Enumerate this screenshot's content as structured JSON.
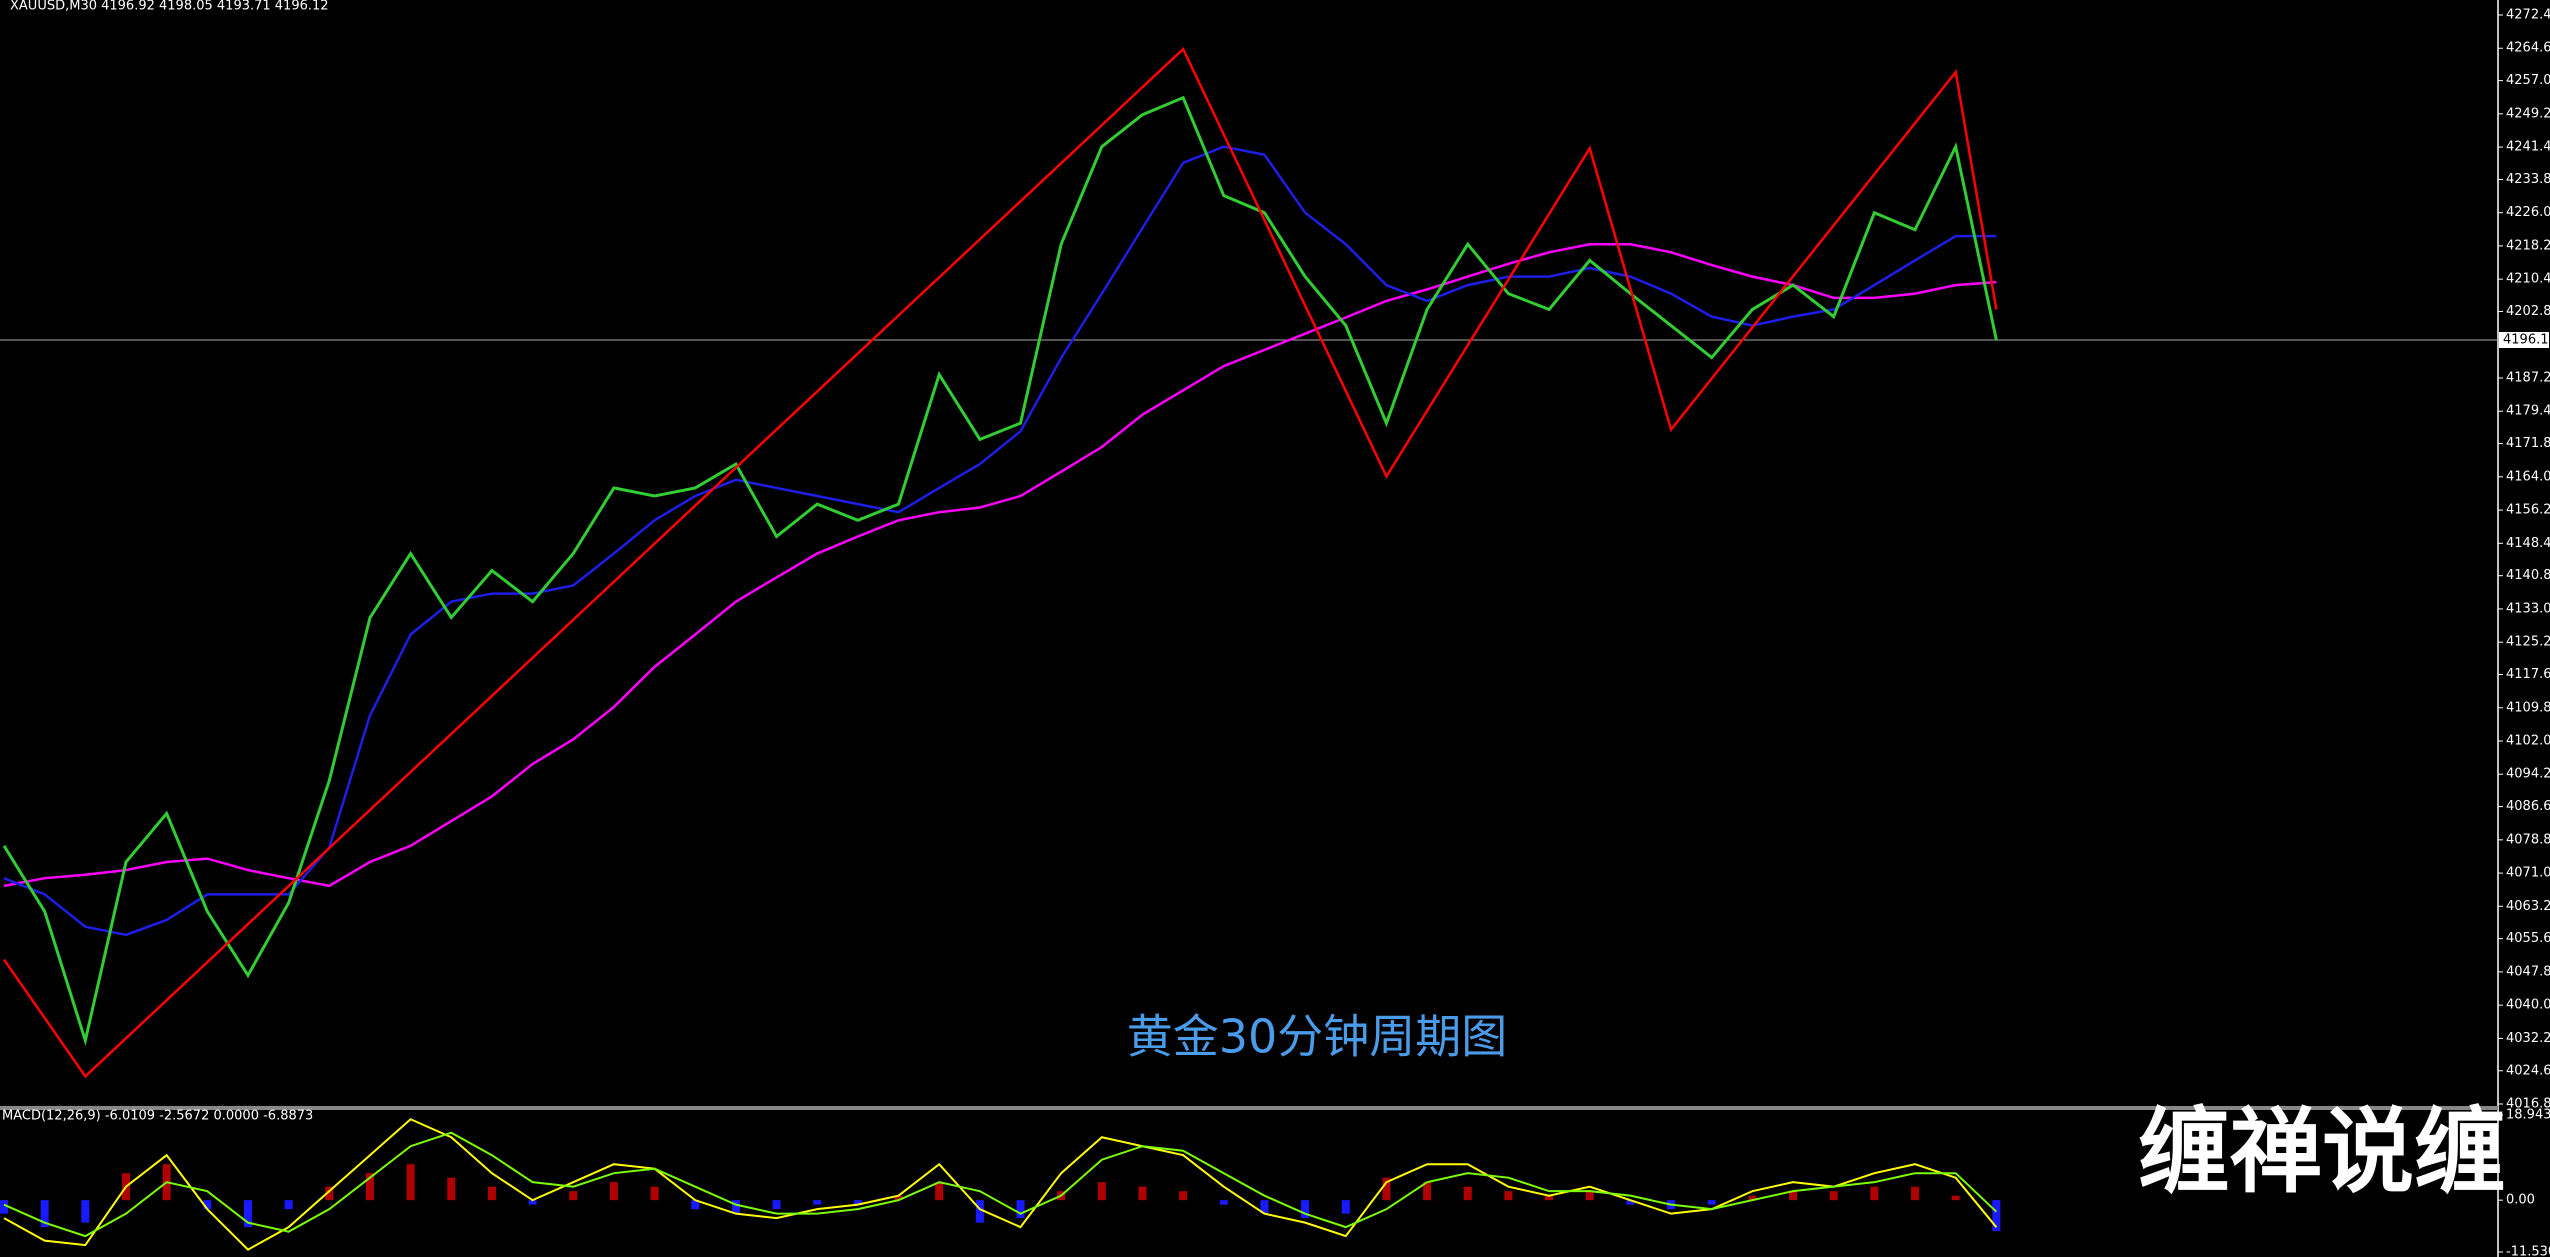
{
  "chart_data": [
    {
      "type": "line",
      "header": "XAUUSD,M30  4196.92 4198.05 4193.71 4196.12",
      "title": "黄金30分钟周期图",
      "x": [
        0,
        1,
        2,
        3,
        4,
        5,
        6,
        7,
        8,
        9,
        10,
        11,
        12,
        13,
        14,
        15,
        16,
        17,
        18,
        19,
        20,
        21,
        22,
        23,
        24,
        25,
        26,
        27,
        28,
        29,
        30,
        31,
        32,
        33,
        34,
        35,
        36,
        37,
        38,
        39,
        40,
        41,
        42,
        43,
        44,
        45,
        46,
        47,
        48,
        49
      ],
      "series": [
        {
          "color": "#32cd32",
          "values": [
            4077.4,
            4062,
            4031.7,
            4073.6,
            4085,
            4062,
            4047,
            4064,
            4092.7,
            4130.9,
            4146,
            4131,
            4142,
            4134.7,
            4146,
            4161.4,
            4159.5,
            4161.4,
            4167,
            4150,
            4157.6,
            4153.8,
            4157.6,
            4188,
            4172.8,
            4176.6,
            4218.6,
            4241.5,
            4249,
            4253,
            4230,
            4226,
            4211,
            4199.5,
            4176.6,
            4203.3,
            4218.6,
            4207,
            4203.3,
            4214.8,
            4207,
            4199.5,
            4192,
            4203.3,
            4209,
            4201.6,
            4226,
            4222,
            4241.5,
            4196.12
          ]
        },
        {
          "color": "#1e1ee6",
          "values": [
            4069.8,
            4066,
            4058.4,
            4056.5,
            4060,
            4066,
            4066,
            4066,
            4077,
            4108,
            4127,
            4134.7,
            4136.6,
            4136.6,
            4138.5,
            4146,
            4153.8,
            4159.5,
            4163.3,
            4161.4,
            4159.5,
            4157.6,
            4155.7,
            4161.4,
            4167,
            4174.7,
            4191.9,
            4207,
            4222.4,
            4237.7,
            4241.5,
            4239.6,
            4226,
            4218.6,
            4209,
            4205.3,
            4209,
            4211,
            4211,
            4213,
            4211,
            4207,
            4201.6,
            4199.5,
            4201.6,
            4203.3,
            4209,
            4214.8,
            4220.5,
            4220.5
          ]
        },
        {
          "color": "#ff00ff",
          "values": [
            4068,
            4069.8,
            4070.6,
            4071.7,
            4073.6,
            4074.4,
            4071.7,
            4069.8,
            4068,
            4073.6,
            4077.4,
            4083.2,
            4089,
            4096.6,
            4102.4,
            4110,
            4119.4,
            4127,
            4134.7,
            4140.4,
            4146,
            4150,
            4153.8,
            4155.7,
            4156.8,
            4159.5,
            4165.2,
            4171,
            4178.6,
            4184.3,
            4190,
            4193.8,
            4197.6,
            4201.4,
            4205.3,
            4208,
            4211,
            4214,
            4216.7,
            4218.6,
            4218.6,
            4216.7,
            4213.7,
            4211,
            4209,
            4206,
            4206,
            4207,
            4209,
            4209.7
          ]
        }
      ],
      "zigzag": {
        "color": "#ff0000",
        "x": [
          0,
          2,
          29,
          34,
          39,
          41,
          48,
          49
        ],
        "values": [
          4050.7,
          4023.3,
          4264.4,
          4164.1,
          4241.1,
          4175.1,
          4259,
          4203.3
        ]
      },
      "last_price": 4196.12,
      "ylim": [
        4016.8,
        4272.4
      ],
      "yticks": [
        {
          "value": 4272.4,
          "label": "4272.40"
        },
        {
          "value": 4264.6,
          "label": "4264.60"
        },
        {
          "value": 4257,
          "label": "4257.00"
        },
        {
          "value": 4249.2,
          "label": "4249.20"
        },
        {
          "value": 4241.4,
          "label": "4241.40"
        },
        {
          "value": 4233.8,
          "label": "4233.80"
        },
        {
          "value": 4226,
          "label": "4226.00"
        },
        {
          "value": 4218.2,
          "label": "4218.20"
        },
        {
          "value": 4210.4,
          "label": "4210.40"
        },
        {
          "value": 4202.8,
          "label": "4202.80"
        },
        {
          "value": 4187.2,
          "label": "4187.20"
        },
        {
          "value": 4179.4,
          "label": "4179.40"
        },
        {
          "value": 4171.8,
          "label": "4171.80"
        },
        {
          "value": 4164,
          "label": "4164.00"
        },
        {
          "value": 4156.2,
          "label": "4156.20"
        },
        {
          "value": 4148.4,
          "label": "4148.40"
        },
        {
          "value": 4140.8,
          "label": "4140.80"
        },
        {
          "value": 4133,
          "label": "4133.00"
        },
        {
          "value": 4125.2,
          "label": "4125.20"
        },
        {
          "value": 4117.6,
          "label": "4117.60"
        },
        {
          "value": 4109.8,
          "label": "4109.80"
        },
        {
          "value": 4102,
          "label": "4102.00"
        },
        {
          "value": 4094.2,
          "label": "4094.20"
        },
        {
          "value": 4086.6,
          "label": "4086.60"
        },
        {
          "value": 4078.8,
          "label": "4078.80"
        },
        {
          "value": 4071,
          "label": "4071.00"
        },
        {
          "value": 4063.2,
          "label": "4063.20"
        },
        {
          "value": 4055.6,
          "label": "4055.60"
        },
        {
          "value": 4047.8,
          "label": "4047.80"
        },
        {
          "value": 4040,
          "label": "4040.00"
        },
        {
          "value": 4032.2,
          "label": "4032.20"
        },
        {
          "value": 4024.6,
          "label": "4024.60"
        },
        {
          "value": 4016.8,
          "label": "4016.80"
        }
      ]
    },
    {
      "type": "macd",
      "header": "MACD(12,26,9) -6.0109 -2.5672 0.0000 -6.8873",
      "x": [
        0,
        1,
        2,
        3,
        4,
        5,
        6,
        7,
        8,
        9,
        10,
        11,
        12,
        13,
        14,
        15,
        16,
        17,
        18,
        19,
        20,
        21,
        22,
        23,
        24,
        25,
        26,
        27,
        28,
        29,
        30,
        31,
        32,
        33,
        34,
        35,
        36,
        37,
        38,
        39,
        40,
        41,
        42,
        43,
        44,
        45,
        46,
        47,
        48,
        49
      ],
      "histogram": {
        "color": "#b00000",
        "negative_color": "#1a1aff",
        "values": [
          -3,
          -6,
          -5,
          6,
          8,
          -2,
          -6,
          -2,
          3,
          6,
          8,
          5,
          3,
          -1,
          2,
          4,
          3,
          -2,
          -3,
          -2,
          -1,
          -1,
          1,
          4,
          -5,
          -4,
          2,
          4,
          3,
          2,
          -1,
          -3,
          -4,
          -3,
          5,
          4,
          3,
          2,
          1,
          2,
          -1,
          -2,
          -1,
          1,
          2,
          2,
          3,
          3,
          1,
          -6.8873
        ]
      },
      "series": [
        {
          "color": "#ffff00",
          "values": [
            -4,
            -9,
            -10,
            3,
            10,
            -2,
            -11,
            -6,
            2,
            10,
            18,
            14,
            6,
            0,
            4,
            8,
            7,
            0,
            -3,
            -4,
            -2,
            -1,
            1,
            8,
            -2,
            -6,
            6,
            14,
            12,
            10,
            3,
            -3,
            -5,
            -8,
            4,
            8,
            8,
            3,
            1,
            3,
            0,
            -3,
            -2,
            2,
            4,
            3,
            6,
            8,
            5,
            -6.0109
          ]
        },
        {
          "color": "#7cfc00",
          "values": [
            -1,
            -5,
            -8,
            -3,
            4,
            2,
            -5,
            -7,
            -2,
            5,
            12,
            15,
            10,
            4,
            3,
            6,
            7,
            3,
            -1,
            -3,
            -3,
            -2,
            0,
            4,
            2,
            -3,
            1,
            9,
            12,
            11,
            6,
            1,
            -3,
            -6,
            -2,
            4,
            6,
            5,
            2,
            2,
            1,
            -1,
            -2,
            0,
            2,
            3,
            4,
            6,
            6,
            -2.5672
          ]
        }
      ],
      "ylim": [
        -11.5307,
        18.9437
      ],
      "yticks": [
        18.9437,
        {
          "value": 0,
          "label": "0.00"
        },
        -11.5307
      ]
    }
  ],
  "watermark": "缠禅说缠"
}
